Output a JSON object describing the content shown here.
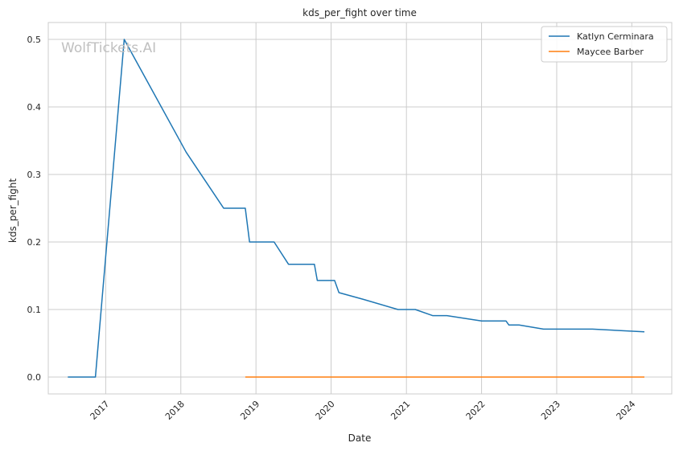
{
  "chart_data": {
    "type": "line",
    "title": "kds_per_fight over time",
    "xlabel": "Date",
    "ylabel": "kds_per_fight",
    "watermark": "WolfTickets.AI",
    "xlim": [
      "2016-03-28",
      "2024-07-13"
    ],
    "ylim": [
      -0.025,
      0.525
    ],
    "x_ticks": [
      {
        "date": "2017-01-01",
        "label": "2017"
      },
      {
        "date": "2018-01-01",
        "label": "2018"
      },
      {
        "date": "2019-01-01",
        "label": "2019"
      },
      {
        "date": "2020-01-01",
        "label": "2020"
      },
      {
        "date": "2021-01-01",
        "label": "2021"
      },
      {
        "date": "2022-01-01",
        "label": "2022"
      },
      {
        "date": "2023-01-01",
        "label": "2023"
      },
      {
        "date": "2024-01-01",
        "label": "2024"
      }
    ],
    "y_ticks": [
      {
        "value": 0.0,
        "label": "0.0"
      },
      {
        "value": 0.1,
        "label": "0.1"
      },
      {
        "value": 0.2,
        "label": "0.2"
      },
      {
        "value": 0.3,
        "label": "0.3"
      },
      {
        "value": 0.4,
        "label": "0.4"
      },
      {
        "value": 0.5,
        "label": "0.5"
      }
    ],
    "grid": true,
    "legend_position": "top-right",
    "series": [
      {
        "name": "Katlyn Cerminara",
        "color": "#1f77b4",
        "points": [
          [
            "2016-07-01",
            0.0
          ],
          [
            "2016-11-12",
            0.0
          ],
          [
            "2017-04-01",
            0.5
          ],
          [
            "2018-01-27",
            0.333
          ],
          [
            "2018-07-28",
            0.25
          ],
          [
            "2018-11-10",
            0.25
          ],
          [
            "2018-12-01",
            0.2
          ],
          [
            "2019-03-30",
            0.2
          ],
          [
            "2019-06-08",
            0.167
          ],
          [
            "2019-10-12",
            0.167
          ],
          [
            "2019-10-26",
            0.143
          ],
          [
            "2020-01-18",
            0.143
          ],
          [
            "2020-02-08",
            0.125
          ],
          [
            "2020-06-06",
            0.115
          ],
          [
            "2020-11-21",
            0.1
          ],
          [
            "2021-02-13",
            0.1
          ],
          [
            "2021-05-08",
            0.091
          ],
          [
            "2021-07-17",
            0.091
          ],
          [
            "2022-01-01",
            0.083
          ],
          [
            "2022-04-30",
            0.083
          ],
          [
            "2022-05-14",
            0.077
          ],
          [
            "2022-07-02",
            0.077
          ],
          [
            "2022-10-29",
            0.071
          ],
          [
            "2023-06-24",
            0.071
          ],
          [
            "2024-03-02",
            0.067
          ]
        ]
      },
      {
        "name": "Maycee Barber",
        "color": "#ff7f0e",
        "points": [
          [
            "2018-11-10",
            0.0
          ],
          [
            "2024-03-02",
            0.0
          ]
        ]
      }
    ]
  }
}
